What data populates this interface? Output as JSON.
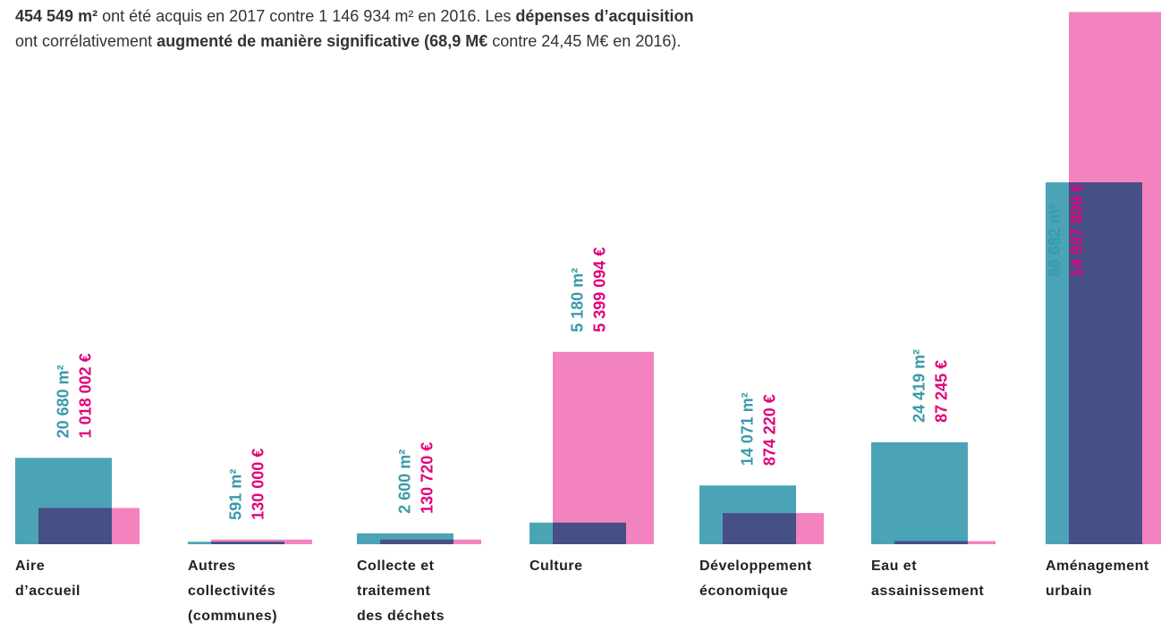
{
  "intro": [
    [
      {
        "text": "454 549 m²",
        "bold": true
      },
      {
        "text": " ont été acquis en 2017 contre 1 146 934 m² en 2016. Les ",
        "bold": false
      },
      {
        "text": "dépenses d’acquisition",
        "bold": true
      }
    ],
    [
      {
        "text": "ont corrélativement ",
        "bold": false
      },
      {
        "text": "augmenté de manière significative (68,9 M€",
        "bold": true
      },
      {
        "text": " contre 24,45 M€ en 2016).",
        "bold": false
      }
    ]
  ],
  "chart_data": {
    "type": "bar",
    "categories": [
      "Aire\nd’accueil",
      "Autres\ncollectivités\n(communes)",
      "Collecte et\ntraitement\ndes déchets",
      "Culture",
      "Développement\néconomique",
      "Eau et\nassainissement",
      "Aménagement\nurbain"
    ],
    "series": [
      {
        "color": "#4ba4b6",
        "text_color": "#3a9aa9",
        "values": [
          20680,
          591,
          2600,
          5180,
          14071,
          24419,
          86682
        ],
        "value_labels": [
          "20 680 m²",
          "591 m²",
          "2 600 m²",
          "5 180 m²",
          "14 071 m²",
          "24 419 m²",
          "86 682 m²"
        ]
      },
      {
        "color": "#f283be",
        "text_color": "#e2007a",
        "axis": "y2",
        "values": [
          1018002,
          130000,
          130720,
          5399094,
          874220,
          87245,
          14937809
        ],
        "value_labels": [
          "1 018 002 €",
          "130 000 €",
          "130 720 €",
          "5 399 094 €",
          "874 220 €",
          "87 245 €",
          "14 937 809 €"
        ]
      }
    ],
    "overlap_color": "#464f86",
    "ylim": [
      0,
      128000
    ],
    "y2lim": [
      0,
      15000000
    ]
  }
}
